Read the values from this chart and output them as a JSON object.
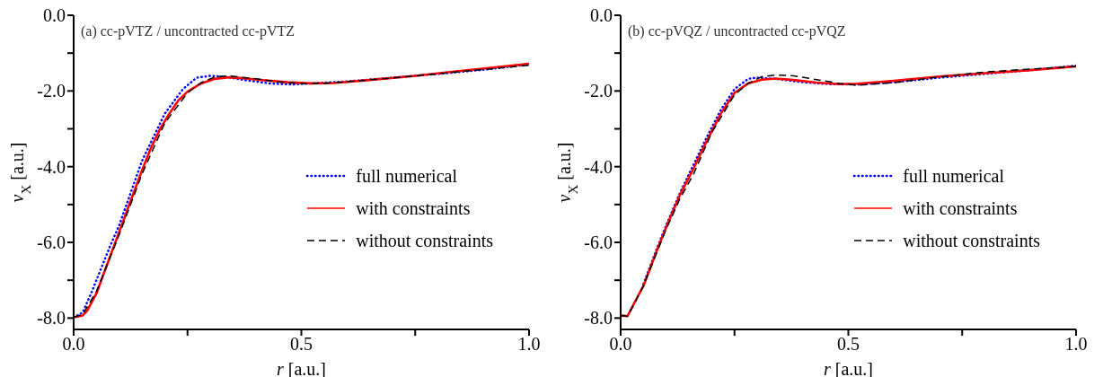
{
  "chart_data": [
    {
      "type": "line",
      "xlabel": "r [a.u.]",
      "ylabel": "v$_{X}$ [a.u.]",
      "annotations": [
        "(a) cc-pVTZ / uncontracted cc-pVTZ"
      ],
      "xlim": [
        0,
        1
      ],
      "ylim": [
        -8.3,
        0
      ],
      "xticks": [
        {
          "value": 0,
          "label": "0.0"
        },
        {
          "value": 0.25,
          "label": null
        },
        {
          "value": 0.5,
          "label": "0.5"
        },
        {
          "value": 0.75,
          "label": null
        },
        {
          "value": 1,
          "label": "1.0"
        }
      ],
      "yticks": [
        {
          "value": -8,
          "label": "-8.0"
        },
        {
          "value": -7,
          "label": null
        },
        {
          "value": -6,
          "label": "-6.0"
        },
        {
          "value": -5,
          "label": null
        },
        {
          "value": -4,
          "label": "-4.0"
        },
        {
          "value": -3,
          "label": null
        },
        {
          "value": -2,
          "label": "-2.0"
        },
        {
          "value": -1,
          "label": null
        },
        {
          "value": 0,
          "label": "0.0"
        }
      ],
      "legend": "right",
      "marker": "none",
      "series": [
        {
          "name": "full numerical",
          "color": "#0000ff",
          "line_style": "dotted",
          "x": [
            0,
            0.02,
            0.04,
            0.06,
            0.08,
            0.1,
            0.15,
            0.2,
            0.24,
            0.27,
            0.3,
            0.33,
            0.38,
            0.43,
            0.48,
            0.52,
            0.6,
            0.7,
            0.8,
            0.9,
            1.0
          ],
          "values": [
            -7.98,
            -7.85,
            -7.3,
            -6.7,
            -6.1,
            -5.55,
            -3.85,
            -2.6,
            -1.95,
            -1.65,
            -1.6,
            -1.62,
            -1.72,
            -1.8,
            -1.83,
            -1.8,
            -1.75,
            -1.65,
            -1.55,
            -1.44,
            -1.3
          ]
        },
        {
          "name": "with constraints",
          "color": "#ff0000",
          "line_style": "solid",
          "x": [
            0,
            0.02,
            0.03,
            0.05,
            0.07,
            0.09,
            0.11,
            0.13,
            0.15,
            0.17,
            0.19,
            0.21,
            0.23,
            0.25,
            0.28,
            0.31,
            0.34,
            0.38,
            0.42,
            0.47,
            0.52,
            0.57,
            0.65,
            0.75,
            0.85,
            1.0
          ],
          "values": [
            -7.98,
            -7.93,
            -7.8,
            -7.35,
            -6.7,
            -6.05,
            -5.4,
            -4.75,
            -4.1,
            -3.5,
            -3.0,
            -2.6,
            -2.25,
            -2.02,
            -1.8,
            -1.68,
            -1.64,
            -1.67,
            -1.72,
            -1.77,
            -1.8,
            -1.79,
            -1.71,
            -1.6,
            -1.47,
            -1.28
          ]
        },
        {
          "name": "without constraints",
          "color": "#000000",
          "line_style": "dashed",
          "x": [
            0,
            0.02,
            0.05,
            0.1,
            0.15,
            0.2,
            0.25,
            0.28,
            0.31,
            0.34,
            0.4,
            0.45,
            0.5,
            0.55,
            0.65,
            0.75,
            0.85,
            1.0
          ],
          "values": [
            -7.98,
            -7.9,
            -7.3,
            -5.8,
            -4.2,
            -2.85,
            -2.05,
            -1.78,
            -1.63,
            -1.6,
            -1.68,
            -1.76,
            -1.81,
            -1.8,
            -1.71,
            -1.6,
            -1.49,
            -1.32
          ]
        }
      ]
    },
    {
      "type": "line",
      "xlabel": "r [a.u.]",
      "ylabel": "v$_{X}$ [a.u.]",
      "annotations": [
        "(b) cc-pVQZ / uncontracted cc-pVQZ"
      ],
      "xlim": [
        0,
        1
      ],
      "ylim": [
        -8.3,
        0
      ],
      "xticks": [
        {
          "value": 0,
          "label": "0.0"
        },
        {
          "value": 0.25,
          "label": null
        },
        {
          "value": 0.5,
          "label": "0.5"
        },
        {
          "value": 0.75,
          "label": null
        },
        {
          "value": 1,
          "label": "1.0"
        }
      ],
      "yticks": [
        {
          "value": -8,
          "label": "-8.0"
        },
        {
          "value": -7,
          "label": null
        },
        {
          "value": -6,
          "label": "-6.0"
        },
        {
          "value": -5,
          "label": null
        },
        {
          "value": -4,
          "label": "-4.0"
        },
        {
          "value": -3,
          "label": null
        },
        {
          "value": -2,
          "label": "-2.0"
        },
        {
          "value": -1,
          "label": null
        },
        {
          "value": 0,
          "label": "0.0"
        }
      ],
      "legend": "right",
      "marker": "none",
      "series": [
        {
          "name": "full numerical",
          "color": "#0000ff",
          "line_style": "dotted",
          "x": [
            0.05,
            0.08,
            0.1,
            0.13,
            0.16,
            0.19,
            0.22,
            0.25,
            0.28,
            0.3,
            0.34,
            0.4,
            0.46,
            0.52,
            0.6,
            0.7,
            0.8,
            0.9,
            1.0
          ],
          "values": [
            -7.1,
            -6.15,
            -5.55,
            -4.7,
            -3.95,
            -3.2,
            -2.5,
            -1.95,
            -1.68,
            -1.65,
            -1.68,
            -1.77,
            -1.82,
            -1.83,
            -1.77,
            -1.65,
            -1.55,
            -1.45,
            -1.33
          ]
        },
        {
          "name": "with constraints",
          "color": "#ff0000",
          "line_style": "solid",
          "x": [
            0,
            0.015,
            0.03,
            0.05,
            0.08,
            0.1,
            0.13,
            0.16,
            0.19,
            0.22,
            0.25,
            0.28,
            0.31,
            0.34,
            0.38,
            0.43,
            0.48,
            0.52,
            0.6,
            0.7,
            0.8,
            0.9,
            1.0
          ],
          "values": [
            -7.93,
            -7.95,
            -7.6,
            -7.15,
            -6.2,
            -5.6,
            -4.75,
            -4.05,
            -3.3,
            -2.6,
            -2.05,
            -1.8,
            -1.7,
            -1.67,
            -1.71,
            -1.78,
            -1.82,
            -1.81,
            -1.73,
            -1.62,
            -1.53,
            -1.45,
            -1.35
          ]
        },
        {
          "name": "without constraints",
          "color": "#000000",
          "line_style": "dashed",
          "x": [
            0,
            0.015,
            0.03,
            0.05,
            0.08,
            0.1,
            0.13,
            0.16,
            0.2,
            0.25,
            0.28,
            0.31,
            0.34,
            0.38,
            0.43,
            0.48,
            0.52,
            0.6,
            0.7,
            0.8,
            0.9,
            1.0
          ],
          "values": [
            -7.93,
            -7.95,
            -7.62,
            -7.15,
            -6.25,
            -5.65,
            -4.85,
            -4.2,
            -3.1,
            -2.1,
            -1.8,
            -1.62,
            -1.58,
            -1.6,
            -1.7,
            -1.8,
            -1.85,
            -1.78,
            -1.63,
            -1.5,
            -1.42,
            -1.35
          ]
        }
      ]
    }
  ]
}
